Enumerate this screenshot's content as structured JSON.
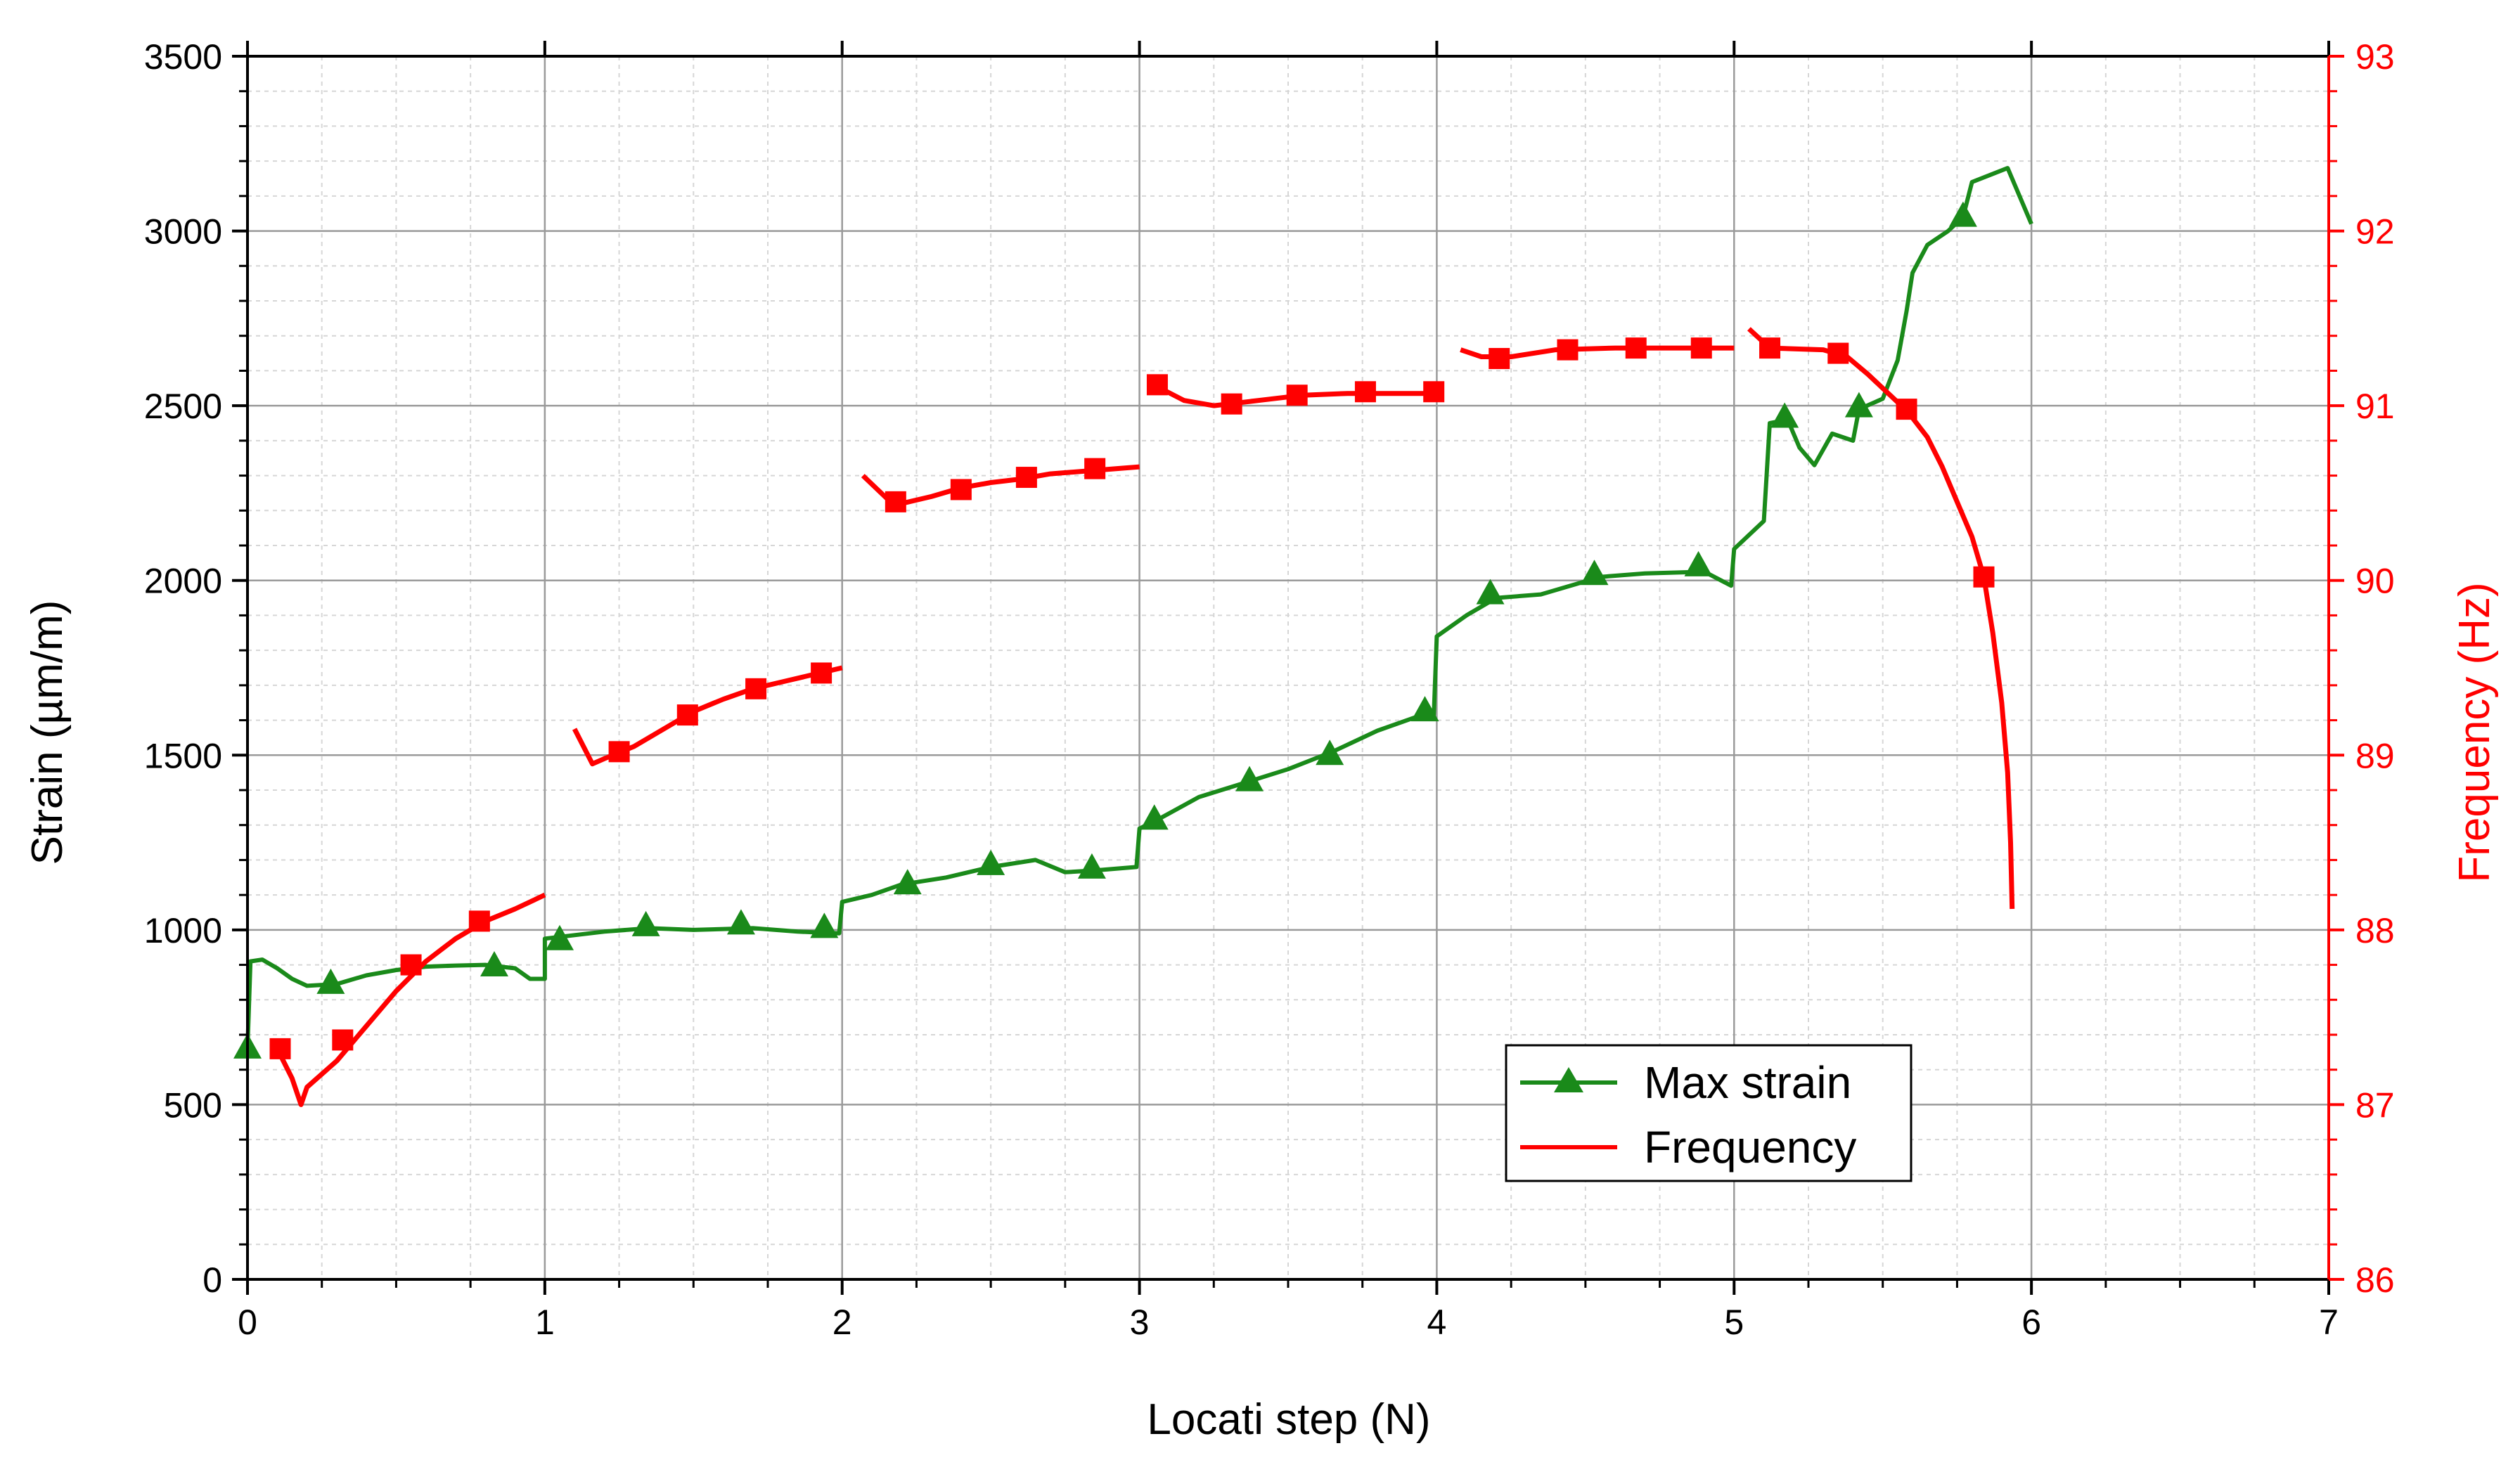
{
  "chart_data": {
    "type": "line",
    "xlabel": "Locati step (N)",
    "ylabel": "Strain (µm/m)",
    "y2label": "Frequency (Hz)",
    "xlim": [
      0,
      7
    ],
    "ylim": [
      0,
      3500
    ],
    "y2lim": [
      86,
      93
    ],
    "xticks": [
      "0",
      "1",
      "2",
      "3",
      "4",
      "5",
      "6",
      "7"
    ],
    "yticks": [
      "0",
      "500",
      "1000",
      "1500",
      "2000",
      "2500",
      "3000",
      "3500"
    ],
    "y2ticks": [
      "86",
      "87",
      "88",
      "89",
      "90",
      "91",
      "92",
      "93"
    ],
    "grid": true,
    "legend_position": "bottom-center",
    "series": [
      {
        "name": "Max strain",
        "axis": "left",
        "color": "#1a8a1a",
        "marker": "triangle",
        "points": [
          [
            0.0,
            660
          ],
          [
            0.01,
            910
          ],
          [
            0.05,
            915
          ],
          [
            0.1,
            890
          ],
          [
            0.15,
            860
          ],
          [
            0.2,
            840
          ],
          [
            0.3,
            845
          ],
          [
            0.4,
            870
          ],
          [
            0.5,
            885
          ],
          [
            0.6,
            895
          ],
          [
            0.7,
            898
          ],
          [
            0.8,
            900
          ],
          [
            0.9,
            890
          ],
          [
            0.95,
            860
          ],
          [
            1.0,
            860
          ],
          [
            1.0,
            975
          ],
          [
            1.1,
            985
          ],
          [
            1.2,
            995
          ],
          [
            1.35,
            1005
          ],
          [
            1.5,
            1000
          ],
          [
            1.7,
            1005
          ],
          [
            1.85,
            995
          ],
          [
            1.99,
            990
          ],
          [
            2.0,
            1080
          ],
          [
            2.1,
            1100
          ],
          [
            2.2,
            1130
          ],
          [
            2.35,
            1150
          ],
          [
            2.5,
            1180
          ],
          [
            2.65,
            1200
          ],
          [
            2.75,
            1165
          ],
          [
            2.85,
            1170
          ],
          [
            2.99,
            1180
          ],
          [
            3.0,
            1290
          ],
          [
            3.05,
            1310
          ],
          [
            3.2,
            1380
          ],
          [
            3.35,
            1420
          ],
          [
            3.5,
            1460
          ],
          [
            3.65,
            1510
          ],
          [
            3.8,
            1570
          ],
          [
            3.95,
            1615
          ],
          [
            3.99,
            1615
          ],
          [
            4.0,
            1840
          ],
          [
            4.1,
            1900
          ],
          [
            4.2,
            1950
          ],
          [
            4.35,
            1960
          ],
          [
            4.55,
            2010
          ],
          [
            4.7,
            2020
          ],
          [
            4.9,
            2025
          ],
          [
            4.99,
            1985
          ],
          [
            5.0,
            2090
          ],
          [
            5.1,
            2170
          ],
          [
            5.12,
            2450
          ],
          [
            5.18,
            2460
          ],
          [
            5.22,
            2380
          ],
          [
            5.27,
            2330
          ],
          [
            5.33,
            2420
          ],
          [
            5.4,
            2400
          ],
          [
            5.42,
            2490
          ],
          [
            5.5,
            2520
          ],
          [
            5.55,
            2630
          ],
          [
            5.58,
            2770
          ],
          [
            5.6,
            2880
          ],
          [
            5.65,
            2960
          ],
          [
            5.72,
            3000
          ],
          [
            5.77,
            3040
          ],
          [
            5.8,
            3140
          ],
          [
            5.92,
            3180
          ],
          [
            6.0,
            3020
          ]
        ],
        "markers": [
          [
            0.0,
            660
          ],
          [
            0.28,
            845
          ],
          [
            0.83,
            895
          ],
          [
            1.05,
            970
          ],
          [
            1.34,
            1010
          ],
          [
            1.66,
            1015
          ],
          [
            1.94,
            1005
          ],
          [
            2.22,
            1130
          ],
          [
            2.5,
            1185
          ],
          [
            2.84,
            1175
          ],
          [
            3.05,
            1315
          ],
          [
            3.37,
            1425
          ],
          [
            3.64,
            1500
          ],
          [
            3.96,
            1625
          ],
          [
            4.18,
            1960
          ],
          [
            4.53,
            2015
          ],
          [
            4.88,
            2040
          ],
          [
            5.17,
            2465
          ],
          [
            5.42,
            2495
          ],
          [
            5.77,
            3040
          ]
        ]
      },
      {
        "name": "Frequency",
        "axis": "right",
        "color": "#ff0000",
        "marker": "square",
        "segments": [
          [
            [
              0.1,
              87.32
            ],
            [
              0.15,
              87.15
            ],
            [
              0.18,
              87.0
            ],
            [
              0.2,
              87.1
            ],
            [
              0.3,
              87.25
            ],
            [
              0.4,
              87.45
            ],
            [
              0.5,
              87.65
            ],
            [
              0.6,
              87.82
            ],
            [
              0.7,
              87.95
            ],
            [
              0.8,
              88.05
            ],
            [
              0.9,
              88.12
            ],
            [
              1.0,
              88.2
            ]
          ],
          [
            [
              1.1,
              89.15
            ],
            [
              1.16,
              88.95
            ],
            [
              1.2,
              88.98
            ],
            [
              1.3,
              89.05
            ],
            [
              1.4,
              89.15
            ],
            [
              1.5,
              89.25
            ],
            [
              1.6,
              89.32
            ],
            [
              1.7,
              89.38
            ],
            [
              1.8,
              89.42
            ],
            [
              1.9,
              89.46
            ],
            [
              2.0,
              89.5
            ]
          ],
          [
            [
              2.07,
              90.6
            ],
            [
              2.15,
              90.47
            ],
            [
              2.2,
              90.44
            ],
            [
              2.3,
              90.48
            ],
            [
              2.4,
              90.53
            ],
            [
              2.5,
              90.56
            ],
            [
              2.6,
              90.58
            ],
            [
              2.7,
              90.61
            ],
            [
              2.85,
              90.63
            ],
            [
              3.0,
              90.65
            ]
          ],
          [
            [
              3.07,
              91.1
            ],
            [
              3.15,
              91.03
            ],
            [
              3.25,
              91.0
            ],
            [
              3.3,
              91.01
            ],
            [
              3.4,
              91.03
            ],
            [
              3.55,
              91.06
            ],
            [
              3.7,
              91.07
            ],
            [
              3.85,
              91.07
            ],
            [
              4.0,
              91.07
            ]
          ],
          [
            [
              4.08,
              91.32
            ],
            [
              4.15,
              91.28
            ],
            [
              4.25,
              91.28
            ],
            [
              4.4,
              91.32
            ],
            [
              4.6,
              91.33
            ],
            [
              4.8,
              91.33
            ],
            [
              5.0,
              91.33
            ]
          ],
          [
            [
              5.05,
              91.44
            ],
            [
              5.12,
              91.33
            ],
            [
              5.3,
              91.32
            ],
            [
              5.38,
              91.28
            ],
            [
              5.45,
              91.18
            ],
            [
              5.5,
              91.1
            ],
            [
              5.55,
              91.02
            ],
            [
              5.6,
              90.93
            ],
            [
              5.65,
              90.82
            ],
            [
              5.7,
              90.65
            ],
            [
              5.75,
              90.45
            ],
            [
              5.8,
              90.25
            ],
            [
              5.84,
              90.02
            ],
            [
              5.87,
              89.7
            ],
            [
              5.9,
              89.3
            ],
            [
              5.92,
              88.9
            ],
            [
              5.93,
              88.5
            ],
            [
              5.935,
              88.12
            ]
          ]
        ],
        "markers": [
          [
            0.11,
            87.32
          ],
          [
            0.32,
            87.37
          ],
          [
            0.55,
            87.8
          ],
          [
            0.78,
            88.05
          ],
          [
            1.25,
            89.02
          ],
          [
            1.48,
            89.23
          ],
          [
            1.71,
            89.38
          ],
          [
            1.93,
            89.47
          ],
          [
            2.18,
            90.45
          ],
          [
            2.4,
            90.52
          ],
          [
            2.62,
            90.59
          ],
          [
            2.85,
            90.64
          ],
          [
            3.06,
            91.12
          ],
          [
            3.31,
            91.01
          ],
          [
            3.53,
            91.06
          ],
          [
            3.76,
            91.08
          ],
          [
            3.99,
            91.08
          ],
          [
            4.21,
            91.27
          ],
          [
            4.44,
            91.32
          ],
          [
            4.67,
            91.33
          ],
          [
            4.89,
            91.33
          ],
          [
            5.12,
            91.33
          ],
          [
            5.35,
            91.3
          ],
          [
            5.58,
            90.98
          ],
          [
            5.84,
            90.02
          ]
        ]
      }
    ]
  }
}
